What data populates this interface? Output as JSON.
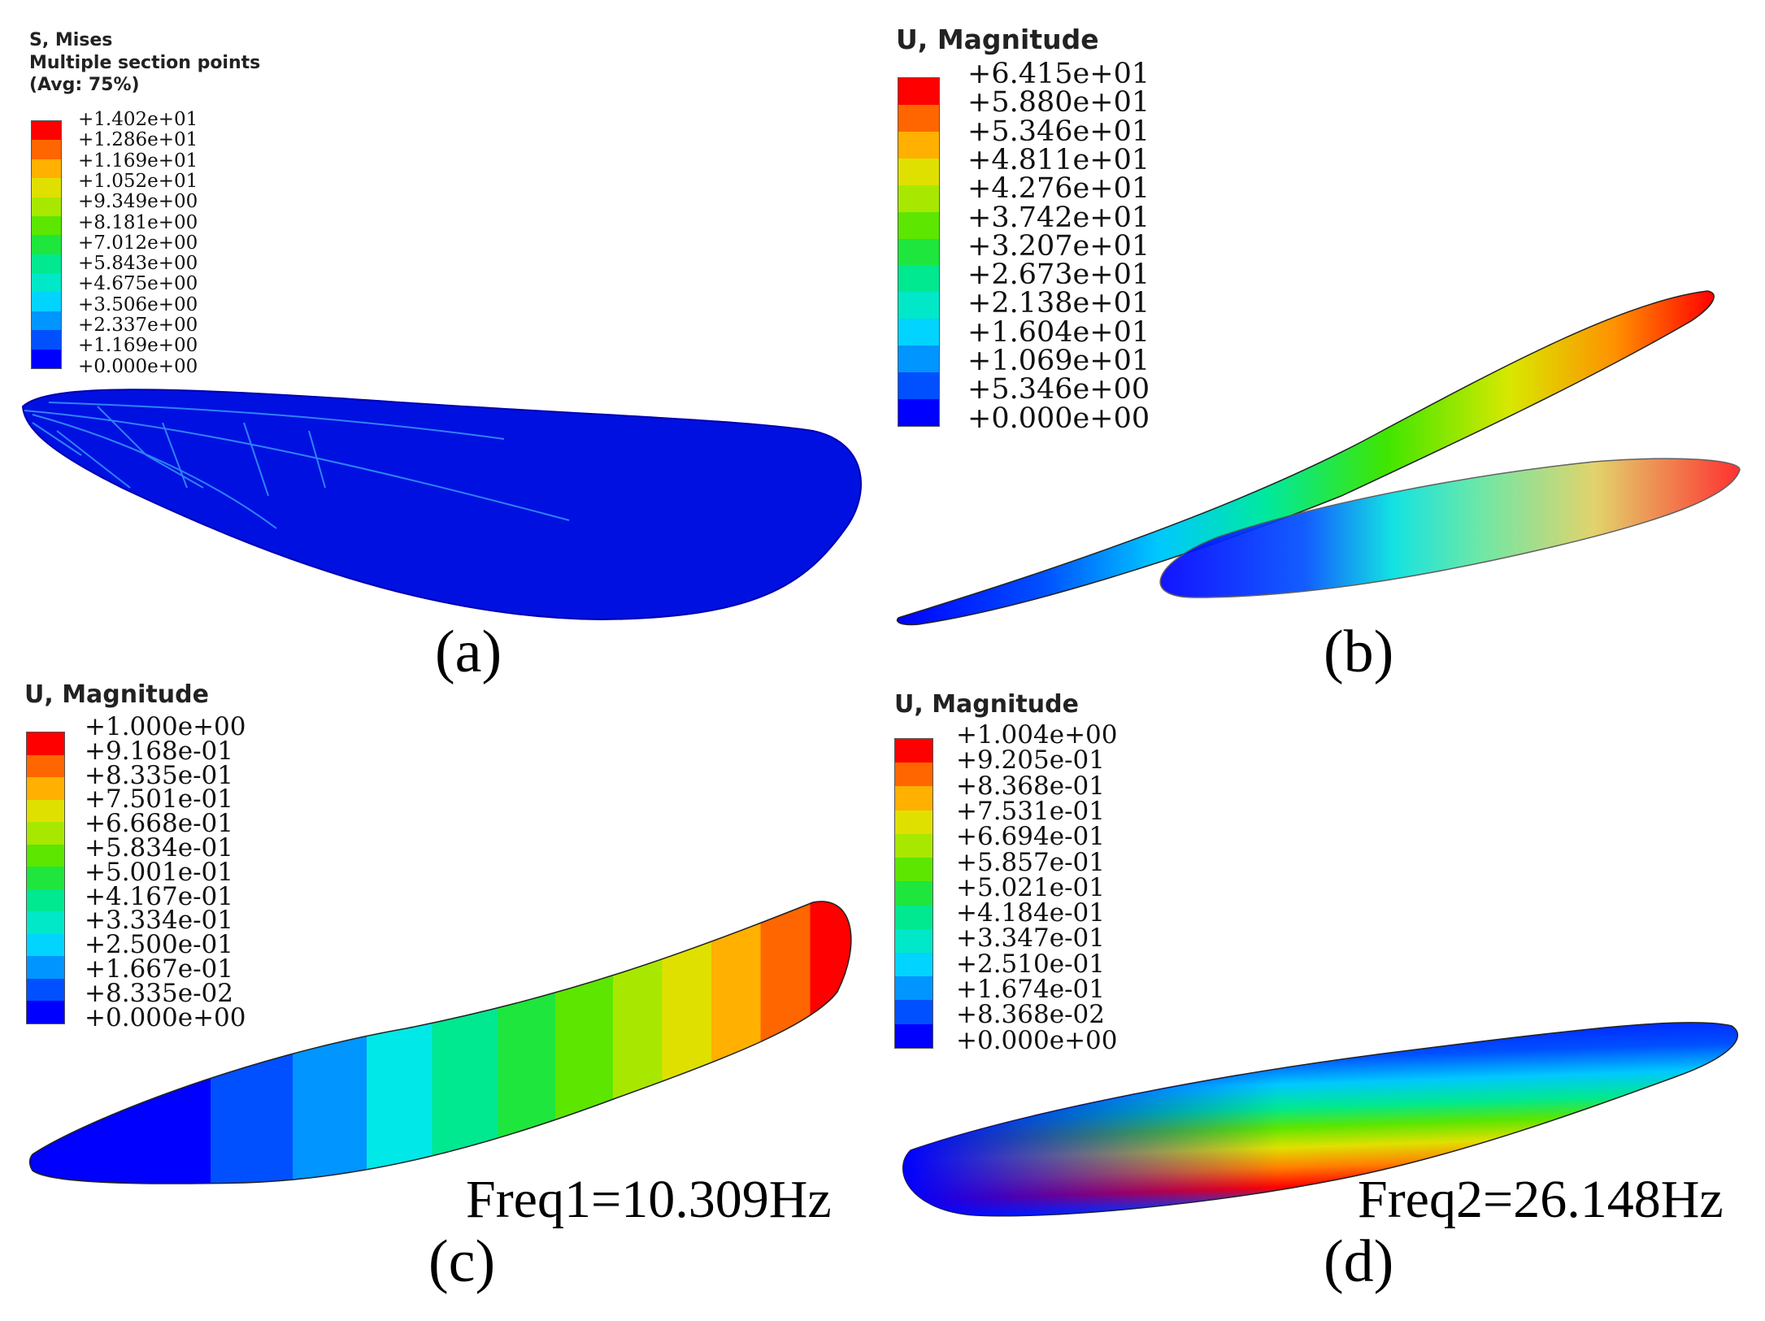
{
  "contour_colors": [
    "#0000ff",
    "#0050ff",
    "#0095ff",
    "#00d4ff",
    "#00e8c8",
    "#00e890",
    "#1ee63c",
    "#5ce600",
    "#a8e800",
    "#e0e000",
    "#ffb000",
    "#ff6600",
    "#ff0000"
  ],
  "panels": [
    {
      "caption": "(a)",
      "legend_title": "S, Mises\nMultiple section points\n(Avg: 75%)",
      "legend_values": [
        "+1.402e+01",
        "+1.286e+01",
        "+1.169e+01",
        "+1.052e+01",
        "+9.349e+00",
        "+8.181e+00",
        "+7.012e+00",
        "+5.843e+00",
        "+4.675e+00",
        "+3.506e+00",
        "+2.337e+00",
        "+1.169e+00",
        "+0.000e+00"
      ]
    },
    {
      "caption": "(b)",
      "legend_title": "U, Magnitude",
      "legend_values": [
        "+6.415e+01",
        "+5.880e+01",
        "+5.346e+01",
        "+4.811e+01",
        "+4.276e+01",
        "+3.742e+01",
        "+3.207e+01",
        "+2.673e+01",
        "+2.138e+01",
        "+1.604e+01",
        "+1.069e+01",
        "+5.346e+00",
        "+0.000e+00"
      ]
    },
    {
      "caption": "(c)",
      "legend_title": "U, Magnitude",
      "legend_values": [
        "+1.000e+00",
        "+9.168e-01",
        "+8.335e-01",
        "+7.501e-01",
        "+6.668e-01",
        "+5.834e-01",
        "+5.001e-01",
        "+4.167e-01",
        "+3.334e-01",
        "+2.500e-01",
        "+1.667e-01",
        "+8.335e-02",
        "+0.000e+00"
      ],
      "frequency": "Freq1=10.309Hz"
    },
    {
      "caption": "(d)",
      "legend_title": "U, Magnitude",
      "legend_values": [
        "+1.004e+00",
        "+9.205e-01",
        "+8.368e-01",
        "+7.531e-01",
        "+6.694e-01",
        "+5.857e-01",
        "+5.021e-01",
        "+4.184e-01",
        "+3.347e-01",
        "+2.510e-01",
        "+1.674e-01",
        "+8.368e-02",
        "+0.000e+00"
      ],
      "frequency": "Freq2=26.148Hz"
    }
  ]
}
